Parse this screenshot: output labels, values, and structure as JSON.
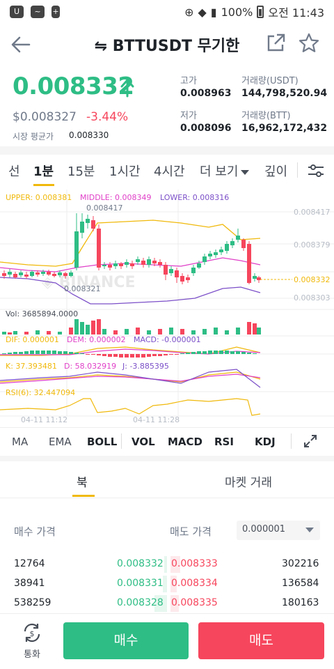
{
  "status_bar": {
    "battery": "100%",
    "time": "오전 11:43"
  },
  "header": {
    "title": "⇋ BTTUSDT 무기한"
  },
  "summary": {
    "last_price": "0.008332",
    "usd_price": "$0.008327",
    "change_pct": "-3.44%",
    "avg_label": "시장 평균가",
    "avg_value": "0.008330",
    "high_label": "고가",
    "high_value": "0.008963",
    "low_label": "저가",
    "low_value": "0.008096",
    "vol_usdt_label": "거래량(USDT)",
    "vol_usdt_value": "144,798,520.94",
    "vol_btt_label": "거래량(BTT)",
    "vol_btt_value": "16,962,172,432"
  },
  "intervals": {
    "items": [
      "선",
      "1분",
      "15분",
      "1시간",
      "4시간",
      "더 보기",
      "깊이"
    ],
    "active": "1분"
  },
  "chart_labels": {
    "upper": "UPPER: 0.008381",
    "middle": "MIDDLE: 0.008349",
    "lower": "LOWER: 0.008316",
    "high_marker": "0.008417",
    "low_marker": "0.008321",
    "price_ticks": [
      "0.008417",
      "0.008379",
      "0.008332",
      "0.008303"
    ],
    "vol": "Vol: 3685894.0000",
    "dif": "DIF: 0.000001",
    "dem": "DEM: 0.000002",
    "macd": "MACD: -0.000001",
    "k": "K: 37.393481",
    "d": "D: 58.032919",
    "j": "J: -3.885395",
    "rsi": "RSI(6): 32.447094",
    "time_ticks": [
      "04-11 11:12",
      "04-11 11:28"
    ]
  },
  "chart_data": {
    "type": "candlestick",
    "bollinger": {
      "upper": 0.008381,
      "middle": 0.008349,
      "lower": 0.008316
    },
    "last_price": 0.008332,
    "high_marker": 0.008417,
    "low_marker": 0.008321,
    "y_ticks": [
      0.008417,
      0.008379,
      0.008332,
      0.008303
    ],
    "x_ticks": [
      "04-11 11:12",
      "04-11 11:28"
    ],
    "volume": 3685894.0,
    "macd": {
      "dif": 1e-06,
      "dem": 2e-06,
      "macd": -1e-06
    },
    "kdj": {
      "k": 37.393481,
      "d": 58.032919,
      "j": -3.885395
    },
    "rsi6": 32.447094,
    "colors": {
      "up": "#2ebd85",
      "down": "#f6465d",
      "upper": "#f0b90b",
      "middle": "#e040c8",
      "lower": "#7b4fc8"
    }
  },
  "indicators": [
    "MA",
    "EMA",
    "BOLL",
    "VOL",
    "MACD",
    "RSI",
    "KDJ"
  ],
  "book_tabs": [
    "북",
    "마켓 거래"
  ],
  "order_book": {
    "bid_header": "매수 가격",
    "ask_header": "매도 가격",
    "precision": "0.000001",
    "rows": [
      {
        "bid_qty": "12764",
        "bid_price": "0.008332",
        "ask_price": "0.008333",
        "ask_qty": "302216"
      },
      {
        "bid_qty": "38941",
        "bid_price": "0.008331",
        "ask_price": "0.008334",
        "ask_qty": "136584"
      },
      {
        "bid_qty": "538259",
        "bid_price": "0.008328",
        "ask_price": "0.008335",
        "ask_qty": "180163"
      }
    ]
  },
  "bottom": {
    "convert_label": "통화",
    "buy_label": "매수",
    "sell_label": "매도"
  }
}
